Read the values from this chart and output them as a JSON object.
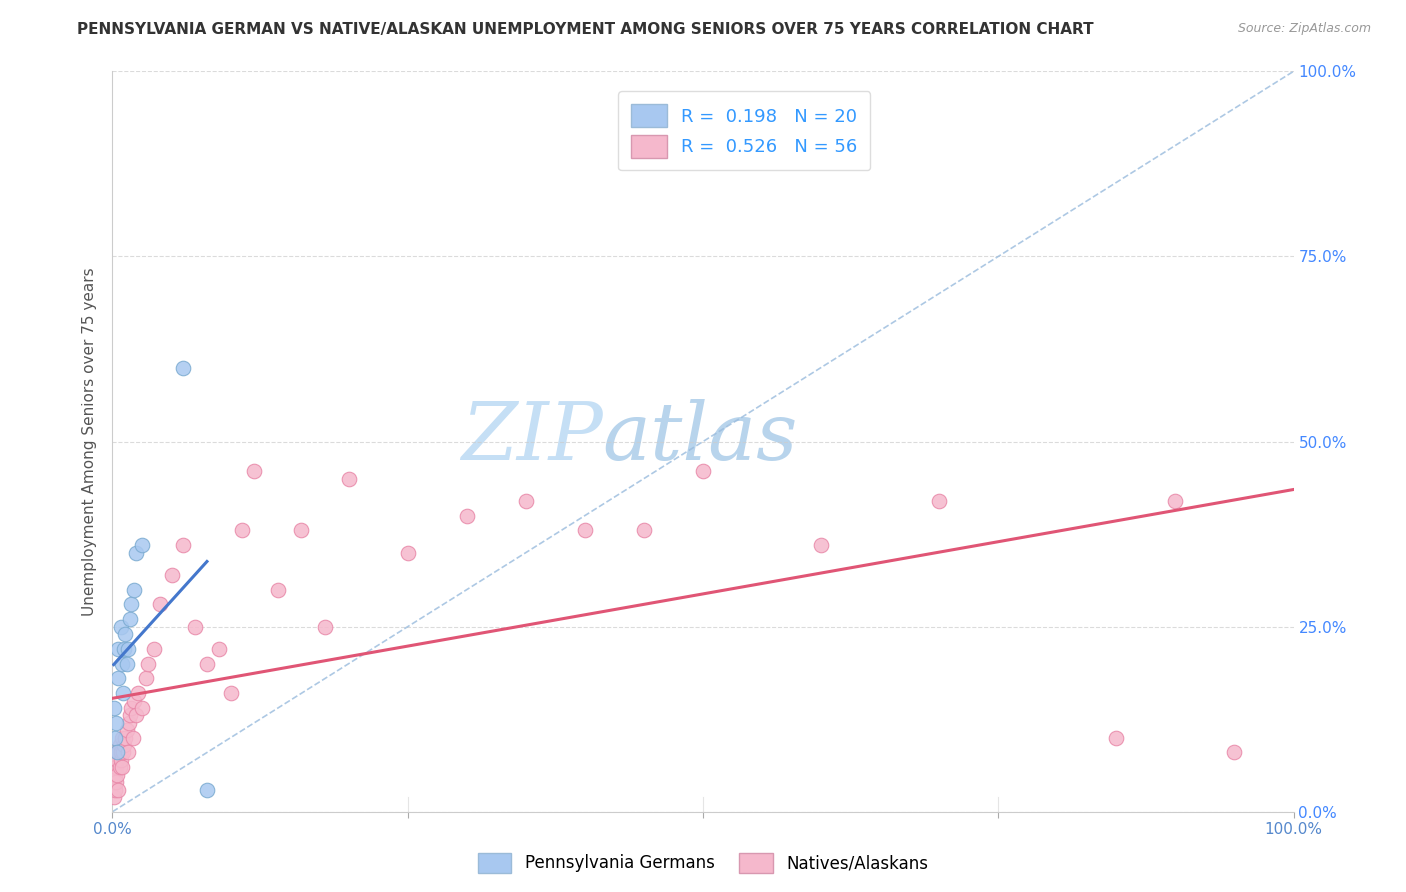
{
  "title": "PENNSYLVANIA GERMAN VS NATIVE/ALASKAN UNEMPLOYMENT AMONG SENIORS OVER 75 YEARS CORRELATION CHART",
  "source": "Source: ZipAtlas.com",
  "ylabel": "Unemployment Among Seniors over 75 years",
  "xlim": [
    0,
    1.0
  ],
  "ylim": [
    0,
    1.0
  ],
  "pg_color": "#a8c8f0",
  "pg_edge_color": "#7aaad0",
  "na_color": "#f5b8cc",
  "na_edge_color": "#e888a8",
  "pg_line_color": "#4477cc",
  "na_line_color": "#e05575",
  "diagonal_color": "#99bbdd",
  "watermark_zip_color": "#c8dff0",
  "watermark_atlas_color": "#c0d8e8",
  "R_pg": 0.198,
  "N_pg": 20,
  "R_na": 0.526,
  "N_na": 56,
  "legend_text_color": "#3399ff",
  "pg_legend_color": "#a8c8f0",
  "na_legend_color": "#f5b8cc",
  "pg_scatter_x": [
    0.001,
    0.002,
    0.003,
    0.004,
    0.005,
    0.005,
    0.007,
    0.008,
    0.009,
    0.01,
    0.011,
    0.012,
    0.013,
    0.015,
    0.016,
    0.018,
    0.02,
    0.025,
    0.06,
    0.08
  ],
  "pg_scatter_y": [
    0.14,
    0.1,
    0.12,
    0.08,
    0.22,
    0.18,
    0.25,
    0.2,
    0.16,
    0.22,
    0.24,
    0.2,
    0.22,
    0.26,
    0.28,
    0.3,
    0.35,
    0.36,
    0.6,
    0.03
  ],
  "na_scatter_x": [
    0.001,
    0.001,
    0.002,
    0.002,
    0.003,
    0.003,
    0.004,
    0.004,
    0.005,
    0.005,
    0.006,
    0.006,
    0.007,
    0.007,
    0.008,
    0.008,
    0.009,
    0.01,
    0.011,
    0.012,
    0.013,
    0.014,
    0.015,
    0.016,
    0.017,
    0.018,
    0.02,
    0.022,
    0.025,
    0.028,
    0.03,
    0.035,
    0.04,
    0.05,
    0.06,
    0.07,
    0.08,
    0.09,
    0.1,
    0.11,
    0.12,
    0.14,
    0.16,
    0.18,
    0.2,
    0.25,
    0.3,
    0.35,
    0.4,
    0.45,
    0.5,
    0.6,
    0.7,
    0.85,
    0.9,
    0.95
  ],
  "na_scatter_y": [
    0.02,
    0.04,
    0.03,
    0.05,
    0.04,
    0.06,
    0.05,
    0.07,
    0.03,
    0.08,
    0.06,
    0.09,
    0.07,
    0.08,
    0.06,
    0.1,
    0.08,
    0.09,
    0.1,
    0.11,
    0.08,
    0.12,
    0.13,
    0.14,
    0.1,
    0.15,
    0.13,
    0.16,
    0.14,
    0.18,
    0.2,
    0.22,
    0.28,
    0.32,
    0.36,
    0.25,
    0.2,
    0.22,
    0.16,
    0.38,
    0.46,
    0.3,
    0.38,
    0.25,
    0.45,
    0.35,
    0.4,
    0.42,
    0.38,
    0.38,
    0.46,
    0.36,
    0.42,
    0.1,
    0.42,
    0.08
  ],
  "background_color": "#ffffff",
  "grid_color": "#cccccc"
}
